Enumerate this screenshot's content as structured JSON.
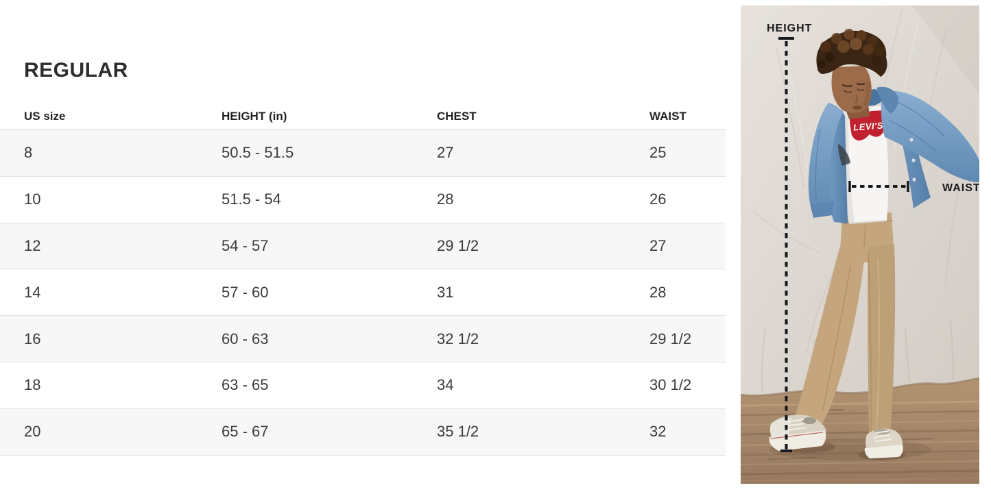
{
  "size_chart": {
    "title": "REGULAR",
    "columns": [
      "US size",
      "HEIGHT (in)",
      "CHEST",
      "WAIST"
    ],
    "rows": [
      [
        "8",
        "50.5 - 51.5",
        "27",
        "25"
      ],
      [
        "10",
        "51.5 - 54",
        "28",
        "26"
      ],
      [
        "12",
        "54 - 57",
        "29 1/2",
        "27"
      ],
      [
        "14",
        "57 - 60",
        "31",
        "28"
      ],
      [
        "16",
        "60 - 63",
        "32 1/2",
        "29 1/2"
      ],
      [
        "18",
        "63 - 65",
        "34",
        "30 1/2"
      ],
      [
        "20",
        "65 - 67",
        "35 1/2",
        "32"
      ]
    ],
    "colors": {
      "row_shaded": "#f7f7f7",
      "row_border": "#e2e2e2",
      "text": "#3b3b3b"
    }
  },
  "figure": {
    "height_label": "HEIGHT",
    "waist_label": "WAIST",
    "shirt_logo": "LEVI'S",
    "colors": {
      "backdrop": "#ddd7d1",
      "floor_wood": "#a4866a",
      "denim_jacket": "#6f99c1",
      "tee_white": "#f6f5f3",
      "logo_red": "#c1212f",
      "pants_khaki": "#c4a57d",
      "annotation": "#17191c"
    }
  }
}
